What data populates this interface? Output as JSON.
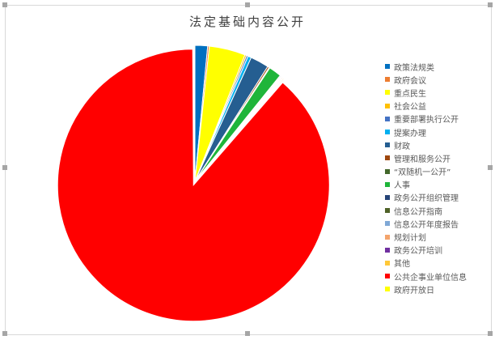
{
  "chart_data": {
    "type": "pie",
    "title": "法定基础内容公开",
    "legend_position": "right",
    "unit": "percent (estimated share)",
    "slices": [
      {
        "name": "政策法规类",
        "value": 1.5,
        "color": "#0070c0"
      },
      {
        "name": "政府会议",
        "value": 0.2,
        "color": "#ed7d31"
      },
      {
        "name": "重点民生",
        "value": 4.3,
        "color": "#ffff00"
      },
      {
        "name": "社会公益",
        "value": 0.2,
        "color": "#ffc000"
      },
      {
        "name": "重要部署执行公开",
        "value": 0.2,
        "color": "#4472c4"
      },
      {
        "name": "提案办理",
        "value": 0.4,
        "color": "#00b0f0"
      },
      {
        "name": "财政",
        "value": 2.2,
        "color": "#255e91"
      },
      {
        "name": "管理和服务公开",
        "value": 0.2,
        "color": "#9e480e"
      },
      {
        "name": "“双随机一公开”",
        "value": 0.1,
        "color": "#43682b"
      },
      {
        "name": "人事",
        "value": 1.5,
        "color": "#1fb53a"
      },
      {
        "name": "政务公开组织管理",
        "value": 0.1,
        "color": "#264478"
      },
      {
        "name": "信息公开指南",
        "value": 0.1,
        "color": "#4f6228"
      },
      {
        "name": "信息公开年度报告",
        "value": 0.1,
        "color": "#7fa8d6"
      },
      {
        "name": "规划计划",
        "value": 0.1,
        "color": "#f4a46c"
      },
      {
        "name": "政务公开培训",
        "value": 0.1,
        "color": "#7030a0"
      },
      {
        "name": "其他",
        "value": 0.1,
        "color": "#ffc838"
      },
      {
        "name": "公共企事业单位信息",
        "value": 88.5,
        "color": "#ff0000"
      },
      {
        "name": "政府开放日",
        "value": 0.1,
        "color": "#ffff00"
      }
    ]
  }
}
